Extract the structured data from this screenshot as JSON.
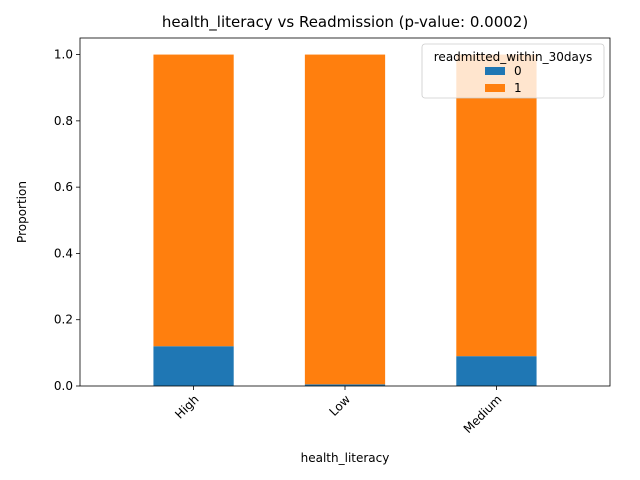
{
  "chart_data": {
    "type": "bar",
    "stacked": true,
    "title": "health_literacy vs Readmission (p-value: 0.0002)",
    "xlabel": "health_literacy",
    "ylabel": "Proportion",
    "categories": [
      "High",
      "Low",
      "Medium"
    ],
    "ylim": [
      0,
      1.05
    ],
    "yticks": [
      "0.0",
      "0.2",
      "0.4",
      "0.6",
      "0.8",
      "1.0"
    ],
    "series": [
      {
        "name": "0",
        "values": [
          0.12,
          0.005,
          0.09
        ],
        "color": "#1f77b4"
      },
      {
        "name": "1",
        "values": [
          0.88,
          0.995,
          0.91
        ],
        "color": "#ff7f0e"
      }
    ],
    "legend": {
      "title": "readmitted_within_30days",
      "position": "top-right"
    },
    "grid": false
  }
}
